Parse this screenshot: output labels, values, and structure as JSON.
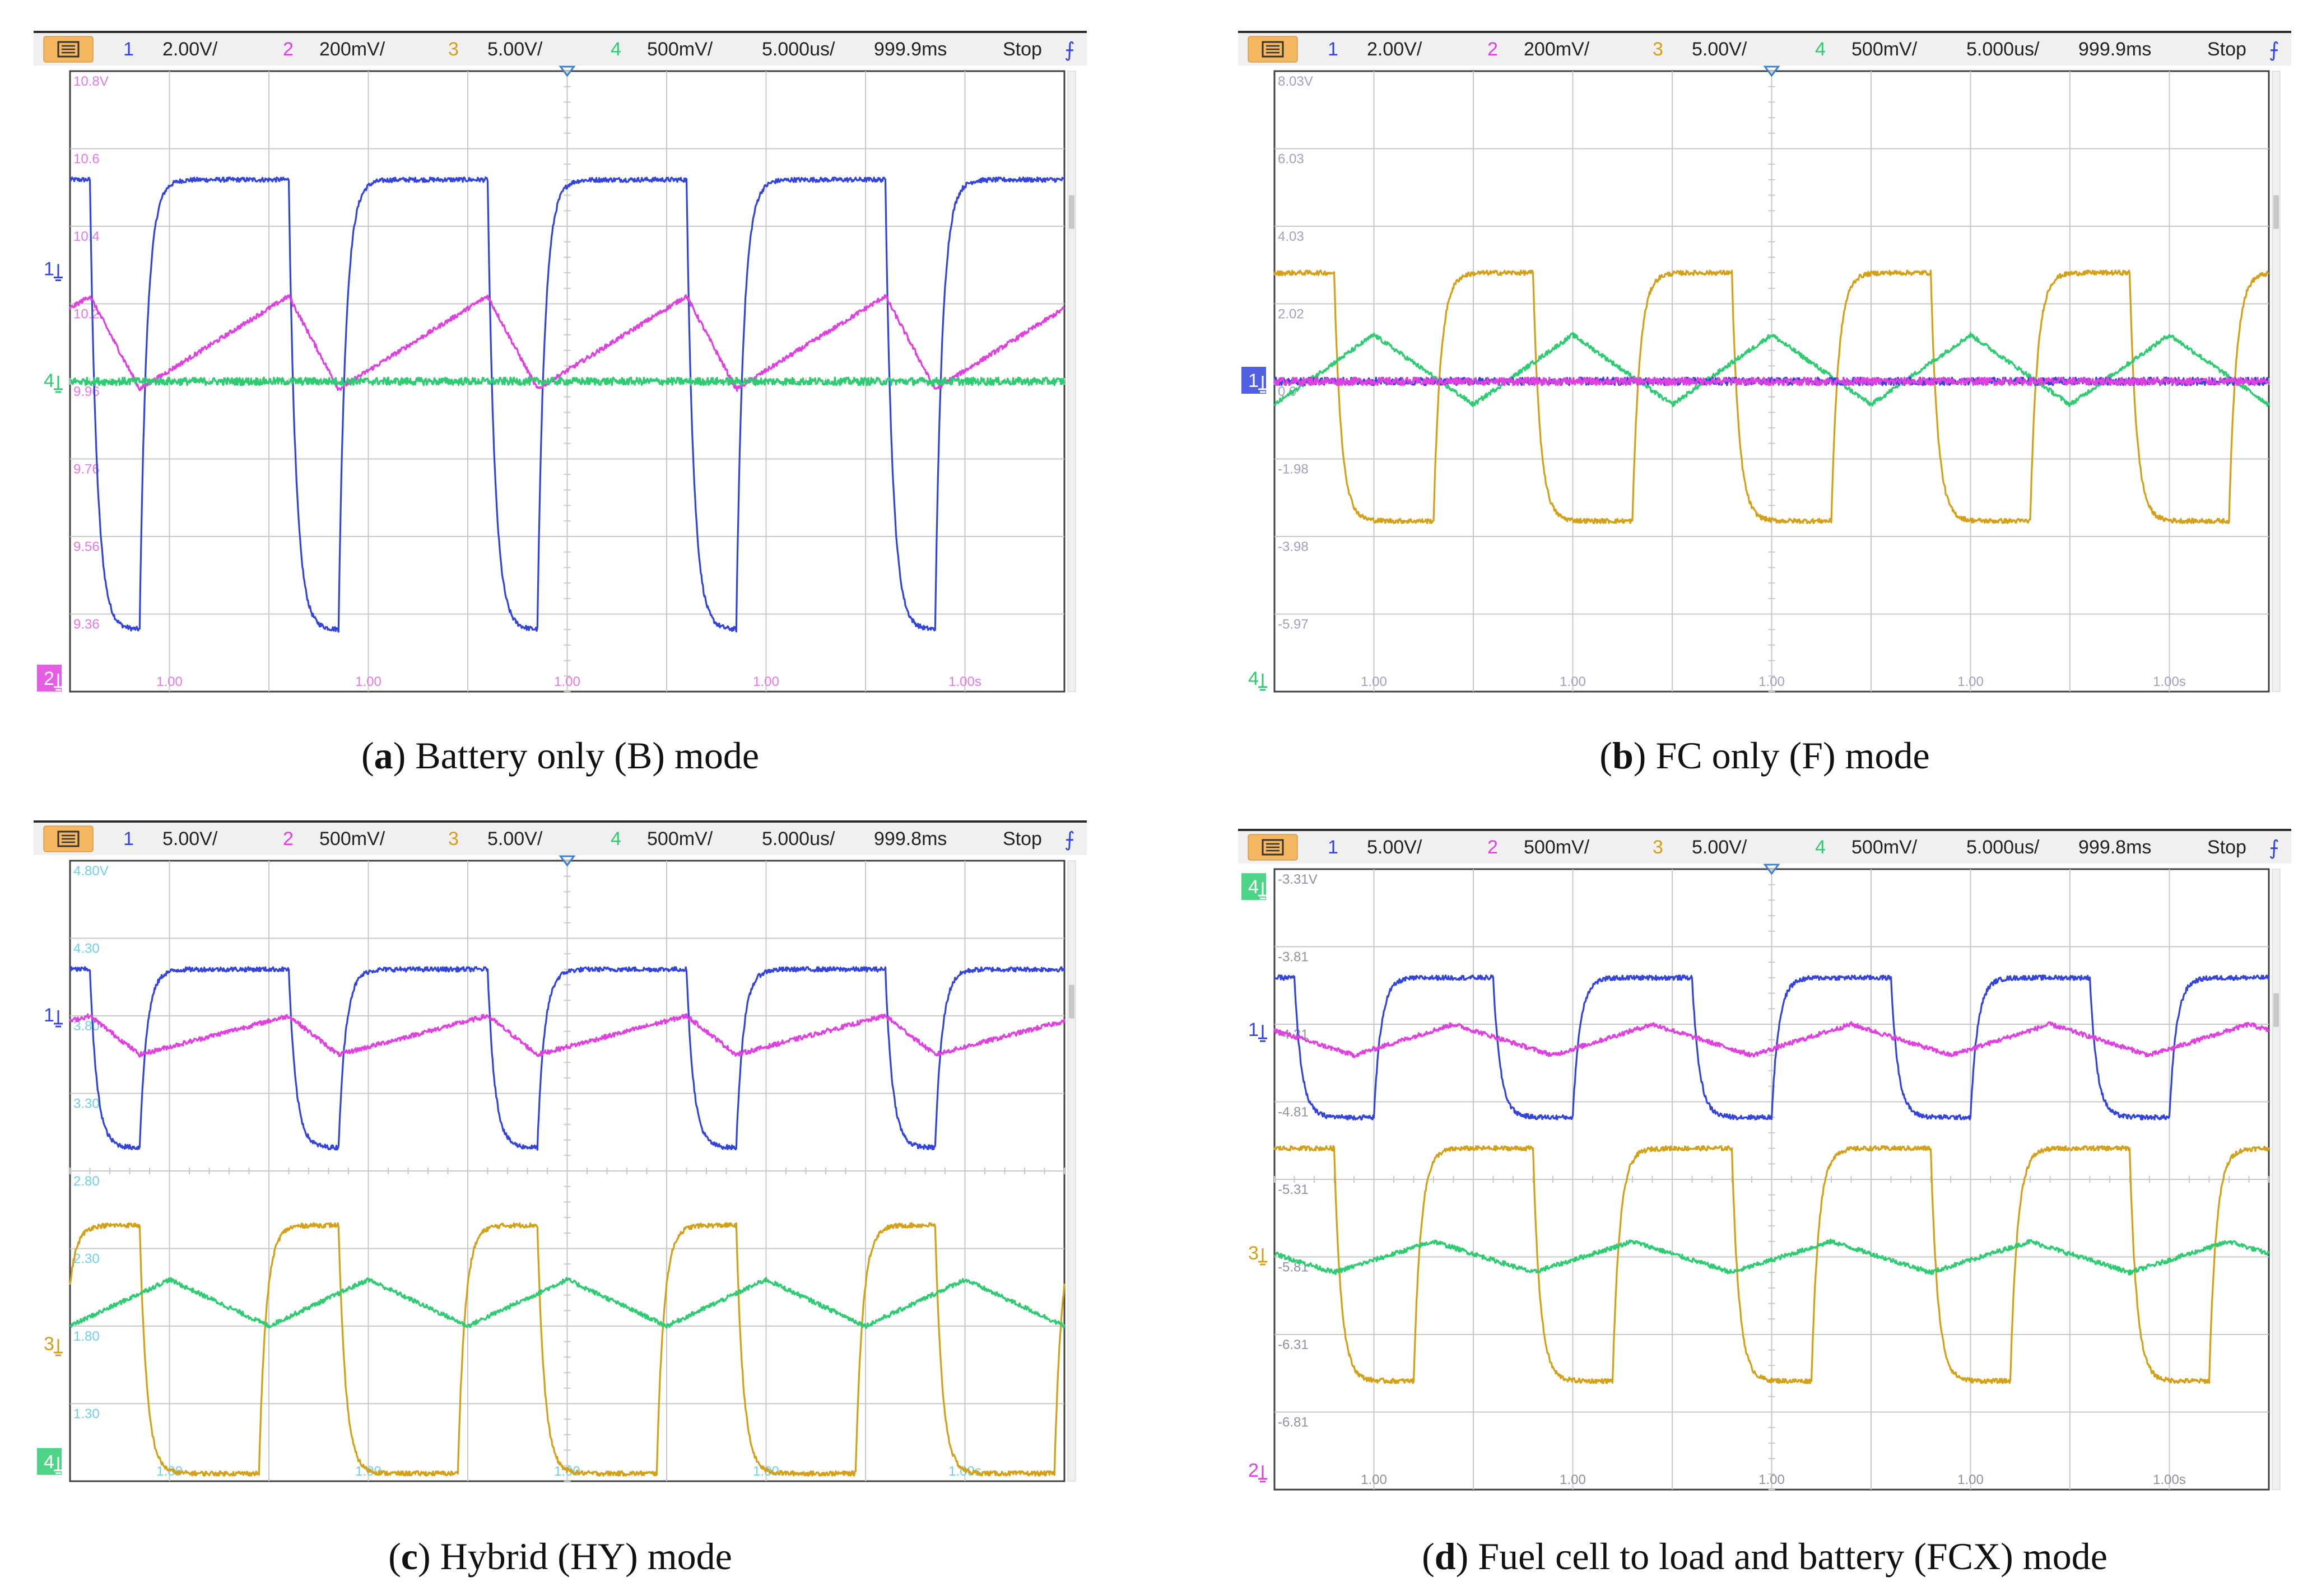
{
  "figure": {
    "panels": [
      {
        "id": "a",
        "caption_letter": "a",
        "caption_text": "Battery only (B) mode",
        "toolbar": {
          "ch1": "1",
          "ch1_scale": "2.00V/",
          "ch2": "2",
          "ch2_scale": "200mV/",
          "ch3": "3",
          "ch3_scale": "5.00V/",
          "ch4": "4",
          "ch4_scale": "500mV/",
          "timebase": "5.000us/",
          "delay": "999.9ms",
          "status": "Stop"
        },
        "y_ticks": [
          "10.8V",
          "10.6",
          "10.4",
          "10.2",
          "9.96",
          "9.76",
          "9.56",
          "9.36"
        ],
        "y_tick_color": "#e878e8",
        "x_ticks": [
          "1.00",
          "1.00",
          "1.00",
          "1.00",
          "1.00s"
        ],
        "left_markers": [
          {
            "label": "1",
            "color": "#3344dd",
            "level": 0.68
          },
          {
            "label": "4",
            "color": "#2ecc71",
            "level": 0.5
          },
          {
            "label": "2",
            "color": "#e040e0",
            "level": 0.02,
            "boxed": true
          }
        ]
      },
      {
        "id": "b",
        "caption_letter": "b",
        "caption_text": "FC only (F) mode",
        "toolbar": {
          "ch1": "1",
          "ch1_scale": "2.00V/",
          "ch2": "2",
          "ch2_scale": "200mV/",
          "ch3": "3",
          "ch3_scale": "5.00V/",
          "ch4": "4",
          "ch4_scale": "500mV/",
          "timebase": "5.000us/",
          "delay": "999.9ms",
          "status": "Stop"
        },
        "y_ticks": [
          "8.03V",
          "6.03",
          "4.03",
          "2.02",
          "0.0",
          "-1.98",
          "-3.98",
          "-5.97"
        ],
        "y_tick_color": "#a0a0c0",
        "x_ticks": [
          "1.00",
          "1.00",
          "1.00",
          "1.00",
          "1.00s"
        ],
        "left_markers": [
          {
            "label": "1",
            "color": "#3344dd",
            "level": 0.5,
            "boxed": true
          },
          {
            "label": "4",
            "color": "#2ecc71",
            "level": 0.02
          }
        ]
      },
      {
        "id": "c",
        "caption_letter": "c",
        "caption_text": "Hybrid (HY) mode",
        "toolbar": {
          "ch1": "1",
          "ch1_scale": "5.00V/",
          "ch2": "2",
          "ch2_scale": "500mV/",
          "ch3": "3",
          "ch3_scale": "5.00V/",
          "ch4": "4",
          "ch4_scale": "500mV/",
          "timebase": "5.000us/",
          "delay": "999.8ms",
          "status": "Stop"
        },
        "y_ticks": [
          "4.80V",
          "4.30",
          "3.80",
          "3.30",
          "2.80",
          "2.30",
          "1.80",
          "1.30"
        ],
        "y_tick_color": "#70d0e8",
        "x_ticks": [
          "1.00",
          "1.00",
          "1.00",
          "1.00",
          "1.00s"
        ],
        "left_markers": [
          {
            "label": "1",
            "color": "#3344dd",
            "level": 0.75
          },
          {
            "label": "3",
            "color": "#d4a017",
            "level": 0.22
          },
          {
            "label": "4",
            "color": "#2ecc71",
            "level": 0.03,
            "boxed": true
          }
        ]
      },
      {
        "id": "d",
        "caption_letter": "d",
        "caption_text": "Fuel cell to load and battery (FCX) mode",
        "toolbar": {
          "ch1": "1",
          "ch1_scale": "5.00V/",
          "ch2": "2",
          "ch2_scale": "500mV/",
          "ch3": "3",
          "ch3_scale": "5.00V/",
          "ch4": "4",
          "ch4_scale": "500mV/",
          "timebase": "5.000us/",
          "delay": "999.8ms",
          "status": "Stop"
        },
        "y_ticks": [
          "-3.31V",
          "-3.81",
          "-4.31",
          "-4.81",
          "-5.31",
          "-5.81",
          "-6.31",
          "-6.81"
        ],
        "y_tick_color": "#9090a0",
        "x_ticks": [
          "1.00",
          "1.00",
          "1.00",
          "1.00",
          "1.00s"
        ],
        "left_markers": [
          {
            "label": "4",
            "color": "#2ecc71",
            "level": 0.97,
            "boxed": true
          },
          {
            "label": "1",
            "color": "#3344dd",
            "level": 0.74
          },
          {
            "label": "3",
            "color": "#d4a017",
            "level": 0.38
          },
          {
            "label": "2",
            "color": "#e040e0",
            "level": 0.03
          }
        ]
      }
    ]
  },
  "colors": {
    "ch1": "#3344dd",
    "ch2": "#e040e0",
    "ch3": "#d4a017",
    "ch4": "#2ecc71",
    "grid": "#c8c8c8",
    "toolbar_bg": "#f0f0f0",
    "menu_button": "#f5b860"
  },
  "chart_data": [
    {
      "type": "line",
      "title": "",
      "panel": "a",
      "x_unit": "us",
      "x_range": [
        0,
        50
      ],
      "ylim_divisions": [
        0,
        8
      ],
      "series": [
        {
          "channel": "1",
          "shape": "square",
          "period_us": 10.0,
          "high_div": 6.6,
          "low_div": 0.8,
          "low_fraction": 0.25,
          "phase_us": 1.0
        },
        {
          "channel": "2",
          "shape": "sawtooth",
          "period_us": 10.0,
          "max_div": 5.1,
          "min_div": 3.9,
          "phase_us": 1.0
        },
        {
          "channel": "4",
          "shape": "flat_noise",
          "level_div": 4.0
        }
      ]
    },
    {
      "type": "line",
      "title": "",
      "panel": "b",
      "x_unit": "us",
      "x_range": [
        0,
        50
      ],
      "ylim_divisions": [
        0,
        8
      ],
      "series": [
        {
          "channel": "3",
          "shape": "square",
          "period_us": 10.0,
          "high_div": 5.4,
          "low_div": 2.2,
          "low_fraction": 0.5,
          "phase_us": 3.0
        },
        {
          "channel": "4",
          "shape": "triangle",
          "period_us": 10.0,
          "max_div": 4.6,
          "min_div": 3.7,
          "phase_us": 0.0
        },
        {
          "channel": "1",
          "shape": "flat_noise",
          "level_div": 4.0
        },
        {
          "channel": "2",
          "shape": "flat_noise",
          "level_div": 4.0
        }
      ]
    },
    {
      "type": "line",
      "title": "",
      "panel": "c",
      "x_unit": "us",
      "x_range": [
        0,
        50
      ],
      "ylim_divisions": [
        0,
        8
      ],
      "series": [
        {
          "channel": "1",
          "shape": "square",
          "period_us": 10.0,
          "high_div": 6.6,
          "low_div": 4.3,
          "low_fraction": 0.25,
          "phase_us": 1.0
        },
        {
          "channel": "2",
          "shape": "sawtooth",
          "period_us": 10.0,
          "max_div": 6.0,
          "min_div": 5.5,
          "phase_us": 1.0
        },
        {
          "channel": "3",
          "shape": "square",
          "period_us": 10.0,
          "high_div": 3.3,
          "low_div": 0.1,
          "low_fraction": 0.6,
          "phase_us": 3.5
        },
        {
          "channel": "4",
          "shape": "triangle",
          "period_us": 10.0,
          "max_div": 2.6,
          "min_div": 2.0,
          "phase_us": 0.0
        }
      ]
    },
    {
      "type": "line",
      "title": "",
      "panel": "d",
      "x_unit": "us",
      "x_range": [
        0,
        50
      ],
      "ylim_divisions": [
        0,
        8
      ],
      "series": [
        {
          "channel": "1",
          "shape": "square",
          "period_us": 10.0,
          "high_div": 6.6,
          "low_div": 4.8,
          "low_fraction": 0.4,
          "phase_us": 1.0
        },
        {
          "channel": "2",
          "shape": "triangle",
          "period_us": 10.0,
          "max_div": 6.0,
          "min_div": 5.6,
          "phase_us": 4.0
        },
        {
          "channel": "3",
          "shape": "square",
          "period_us": 10.0,
          "high_div": 4.4,
          "low_div": 1.4,
          "low_fraction": 0.4,
          "phase_us": 3.0
        },
        {
          "channel": "4",
          "shape": "triangle",
          "period_us": 10.0,
          "max_div": 3.2,
          "min_div": 2.8,
          "phase_us": 3.0
        }
      ]
    }
  ]
}
